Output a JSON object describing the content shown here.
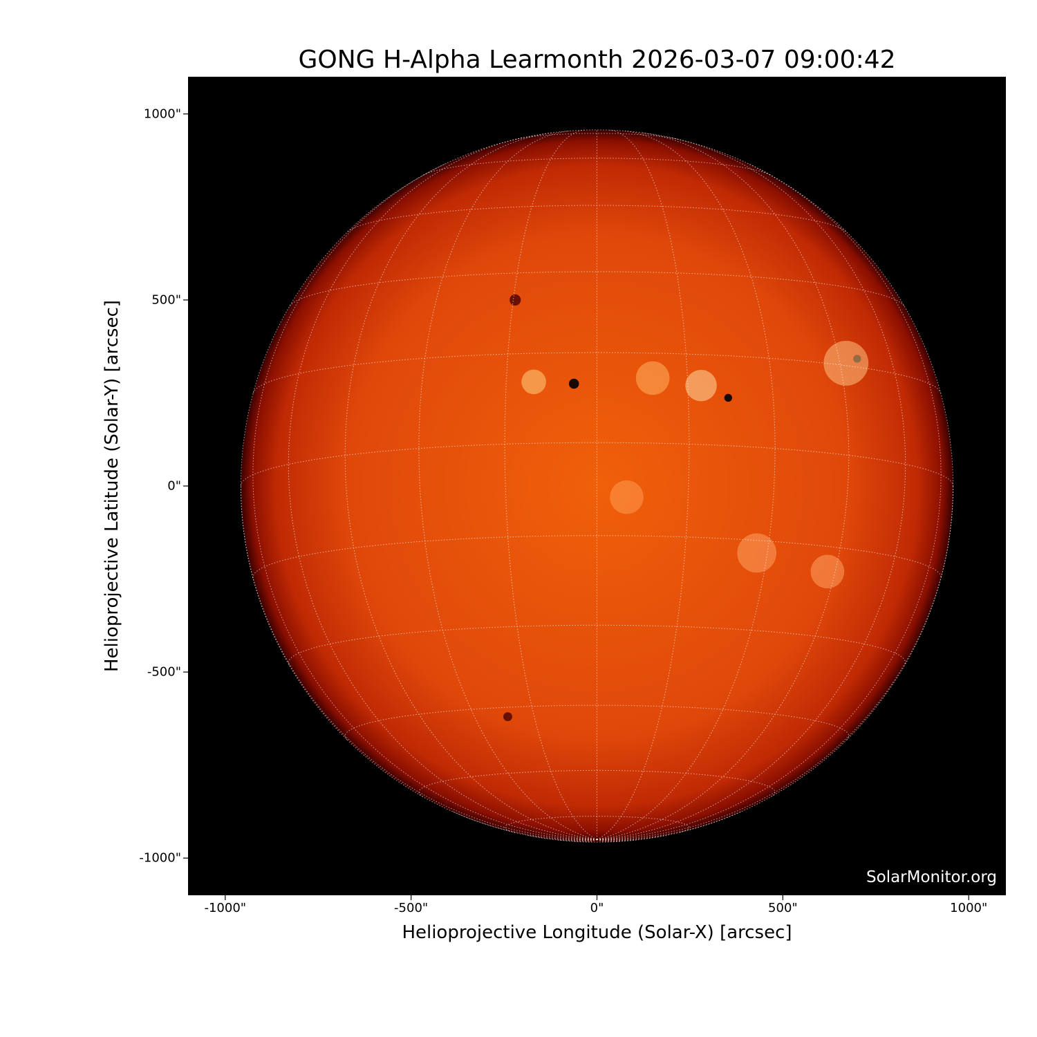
{
  "chart_data": {
    "type": "image",
    "title": "GONG H-Alpha Learmonth 2026-03-07 09:00:42",
    "xlabel": "Helioprojective Longitude (Solar-X) [arcsec]",
    "ylabel": "Helioprojective Latitude (Solar-Y) [arcsec]",
    "xlim": [
      -1100,
      1100
    ],
    "ylim": [
      -1100,
      1100
    ],
    "xticks": [
      -1000,
      -500,
      0,
      500,
      1000
    ],
    "xtick_labels": [
      "-1000\"",
      "-500\"",
      "0\"",
      "500\"",
      "1000\""
    ],
    "yticks": [
      1000,
      500,
      0,
      -500,
      -1000
    ],
    "ytick_labels": [
      "1000\"",
      "500\"",
      "0\"",
      "-500\"",
      "-1000\""
    ],
    "solar_radius_arcsec": 958,
    "grid": true,
    "grid_spacing_deg": 15,
    "colormap": "hot",
    "background": "#000000",
    "watermark": "SolarMonitor.org"
  }
}
